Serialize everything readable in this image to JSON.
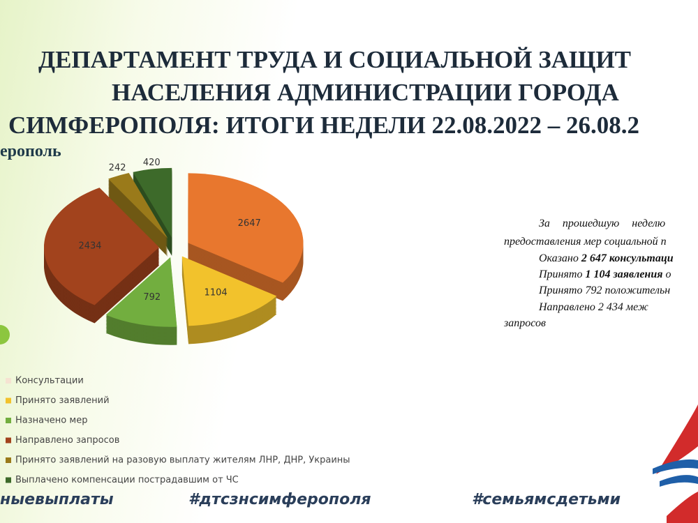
{
  "chart_data": {
    "type": "pie",
    "categories": [
      "Консультации",
      "Принято заявлений",
      "Назначено мер",
      "Направлено запросов",
      "Принято заявлений на разовую выплату жителям ЛНР, ДНР, Украины",
      "Выплачено компенсации пострадавшим от ЧС"
    ],
    "values": [
      2647,
      1104,
      792,
      2434,
      242,
      420
    ],
    "colors": [
      "#e8772e",
      "#f2c22c",
      "#72ae3f",
      "#a2431d",
      "#9a7a1a",
      "#3d6a2a"
    ]
  },
  "header": {
    "title_lines": [
      "ДЕПАРТАМЕНТ ТРУДА И СОЦИАЛЬНОЙ ЗАЩИТ",
      "НАСЕЛЕНИЯ АДМИНИСТРАЦИИ ГОРОДА",
      "СИМФЕРОПОЛЯ: ИТОГИ НЕДЕЛИ 22.08.2022 – 26.08.2"
    ],
    "subtitle": "ерополь"
  },
  "summary": {
    "lines": [
      [
        "За прошедшую неделю"
      ],
      [
        "предоставления мер социальной п"
      ],
      [
        "Оказано ",
        "2 647 консультаци"
      ],
      [
        "Принято ",
        "1 104 заявления",
        " о"
      ],
      [
        "Принято 792 положительн"
      ],
      [
        "Направлено 2 434 меж"
      ],
      [
        "запросов"
      ]
    ]
  },
  "footer": {
    "hashtags": [
      "ныевыплаты",
      "#дтсзнсимферополя",
      "#семьямсдетьми"
    ]
  }
}
